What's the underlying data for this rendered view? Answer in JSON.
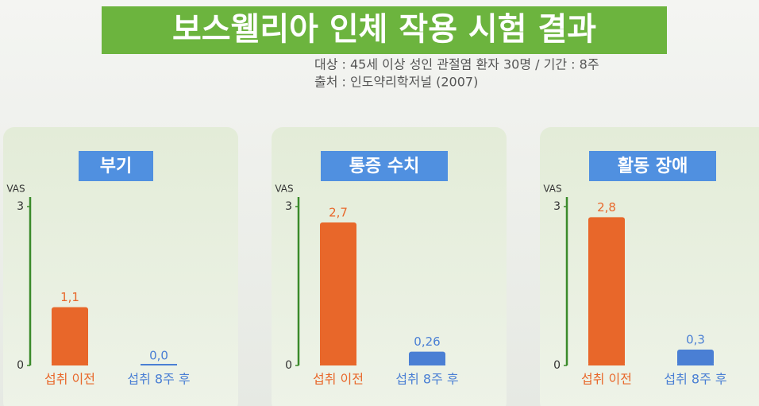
{
  "header": {
    "title": "보스웰리아 인체 작용 시험 결과",
    "subtitle": [
      "대상 : 45세 이상 성인 관절염 환자 30명 / 기간 : 8주",
      "출처 : 인도약리학저널 (2007)"
    ]
  },
  "chart_data": [
    {
      "type": "bar",
      "title": "부기",
      "ylabel": "VAS",
      "categories": [
        "섭취 이전",
        "섭취 8주 후"
      ],
      "values": [
        1.1,
        0.0
      ],
      "value_labels": [
        "1,1",
        "0,0"
      ],
      "colors": [
        "#e8672a",
        "#4a7fd4"
      ],
      "ylim": [
        0,
        3
      ],
      "yticks": [
        0,
        3
      ]
    },
    {
      "type": "bar",
      "title": "통증 수치",
      "ylabel": "VAS",
      "categories": [
        "섭취 이전",
        "섭취 8주 후"
      ],
      "values": [
        2.7,
        0.26
      ],
      "value_labels": [
        "2,7",
        "0,26"
      ],
      "colors": [
        "#e8672a",
        "#4a7fd4"
      ],
      "ylim": [
        0,
        3
      ],
      "yticks": [
        0,
        3
      ]
    },
    {
      "type": "bar",
      "title": "활동 장애",
      "ylabel": "VAS",
      "categories": [
        "섭취 이전",
        "섭취 8주 후"
      ],
      "values": [
        2.8,
        0.3
      ],
      "value_labels": [
        "2,8",
        "0,3"
      ],
      "colors": [
        "#e8672a",
        "#4a7fd4"
      ],
      "ylim": [
        0,
        3
      ],
      "yticks": [
        0,
        3
      ]
    }
  ]
}
